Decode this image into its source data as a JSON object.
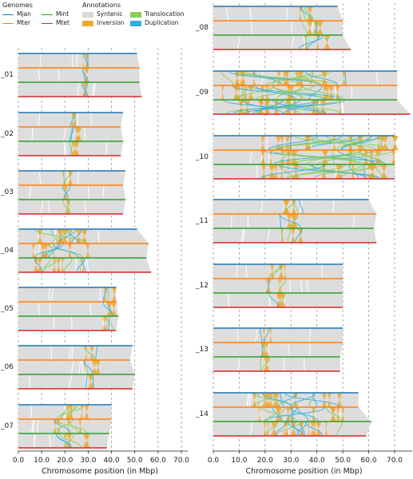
{
  "legend": {
    "genomes_title": "Genomes",
    "annotations_title": "Annotations",
    "genomes": [
      {
        "name": "Mjan",
        "color": "#1f77b4"
      },
      {
        "name": "Mint",
        "color": "#2ca02c"
      },
      {
        "name": "Mter",
        "color": "#ff7f0e"
      },
      {
        "name": "Mtet",
        "color": "#d62728"
      }
    ],
    "annotations": [
      {
        "name": "Syntenic",
        "color": "#d9d9d9"
      },
      {
        "name": "Inversion",
        "color": "#f0a830"
      },
      {
        "name": "Translocation",
        "color": "#8ccc5a"
      },
      {
        "name": "Duplication",
        "color": "#33b0e0"
      }
    ]
  },
  "chart_data": {
    "type": "synteny",
    "xlabel": "Chromosome position (in Mbp)",
    "xticks": [
      "0.0",
      "10.0",
      "20.0",
      "30.0",
      "40.0",
      "50.0",
      "60.0",
      "70.0"
    ],
    "xlim": [
      0,
      70
    ],
    "grid": "vertical dashed at 10 Mbp",
    "genome_order": [
      "Mjan",
      "Mter",
      "Mint",
      "Mtet"
    ],
    "panels": [
      {
        "label": "_01",
        "column": "left",
        "lengths": [
          51,
          52,
          52,
          53
        ],
        "hotspot": [
          27,
          30
        ]
      },
      {
        "label": "_02",
        "column": "left",
        "lengths": [
          45,
          44,
          45,
          44
        ],
        "hotspot": [
          22,
          25
        ]
      },
      {
        "label": "_03",
        "column": "left",
        "lengths": [
          46,
          45,
          46,
          45
        ],
        "hotspot": [
          19,
          23
        ]
      },
      {
        "label": "_04",
        "column": "left",
        "lengths": [
          51,
          56,
          55,
          57
        ],
        "hotspot": [
          5,
          30
        ]
      },
      {
        "label": "_05",
        "column": "left",
        "lengths": [
          42,
          42,
          43,
          42
        ],
        "hotspot": [
          36,
          41
        ]
      },
      {
        "label": "_06",
        "column": "left",
        "lengths": [
          49,
          48,
          50,
          49
        ],
        "hotspot": [
          28,
          34
        ]
      },
      {
        "label": "_07",
        "column": "left",
        "lengths": [
          40,
          40,
          39,
          38
        ],
        "hotspot": [
          15,
          30
        ]
      },
      {
        "label": "_08",
        "column": "right",
        "lengths": [
          48,
          50,
          50,
          53
        ],
        "hotspot": [
          33,
          43
        ]
      },
      {
        "label": "_09",
        "column": "right",
        "lengths": [
          71,
          71,
          71,
          76
        ],
        "hotspot": [
          3,
          52
        ]
      },
      {
        "label": "_10",
        "column": "right",
        "lengths": [
          70,
          70,
          70,
          70
        ],
        "hotspot": [
          18,
          70
        ]
      },
      {
        "label": "_11",
        "column": "right",
        "lengths": [
          60,
          63,
          62,
          63
        ],
        "hotspot": [
          25,
          35
        ]
      },
      {
        "label": "_12",
        "column": "right",
        "lengths": [
          50,
          50,
          50,
          50
        ],
        "hotspot": [
          20,
          28
        ]
      },
      {
        "label": "_13",
        "column": "right",
        "lengths": [
          50,
          50,
          49,
          49
        ],
        "hotspot": [
          18,
          22
        ]
      },
      {
        "label": "_14",
        "column": "right",
        "lengths": [
          56,
          56,
          61,
          59
        ],
        "hotspot": [
          15,
          50
        ]
      }
    ]
  }
}
